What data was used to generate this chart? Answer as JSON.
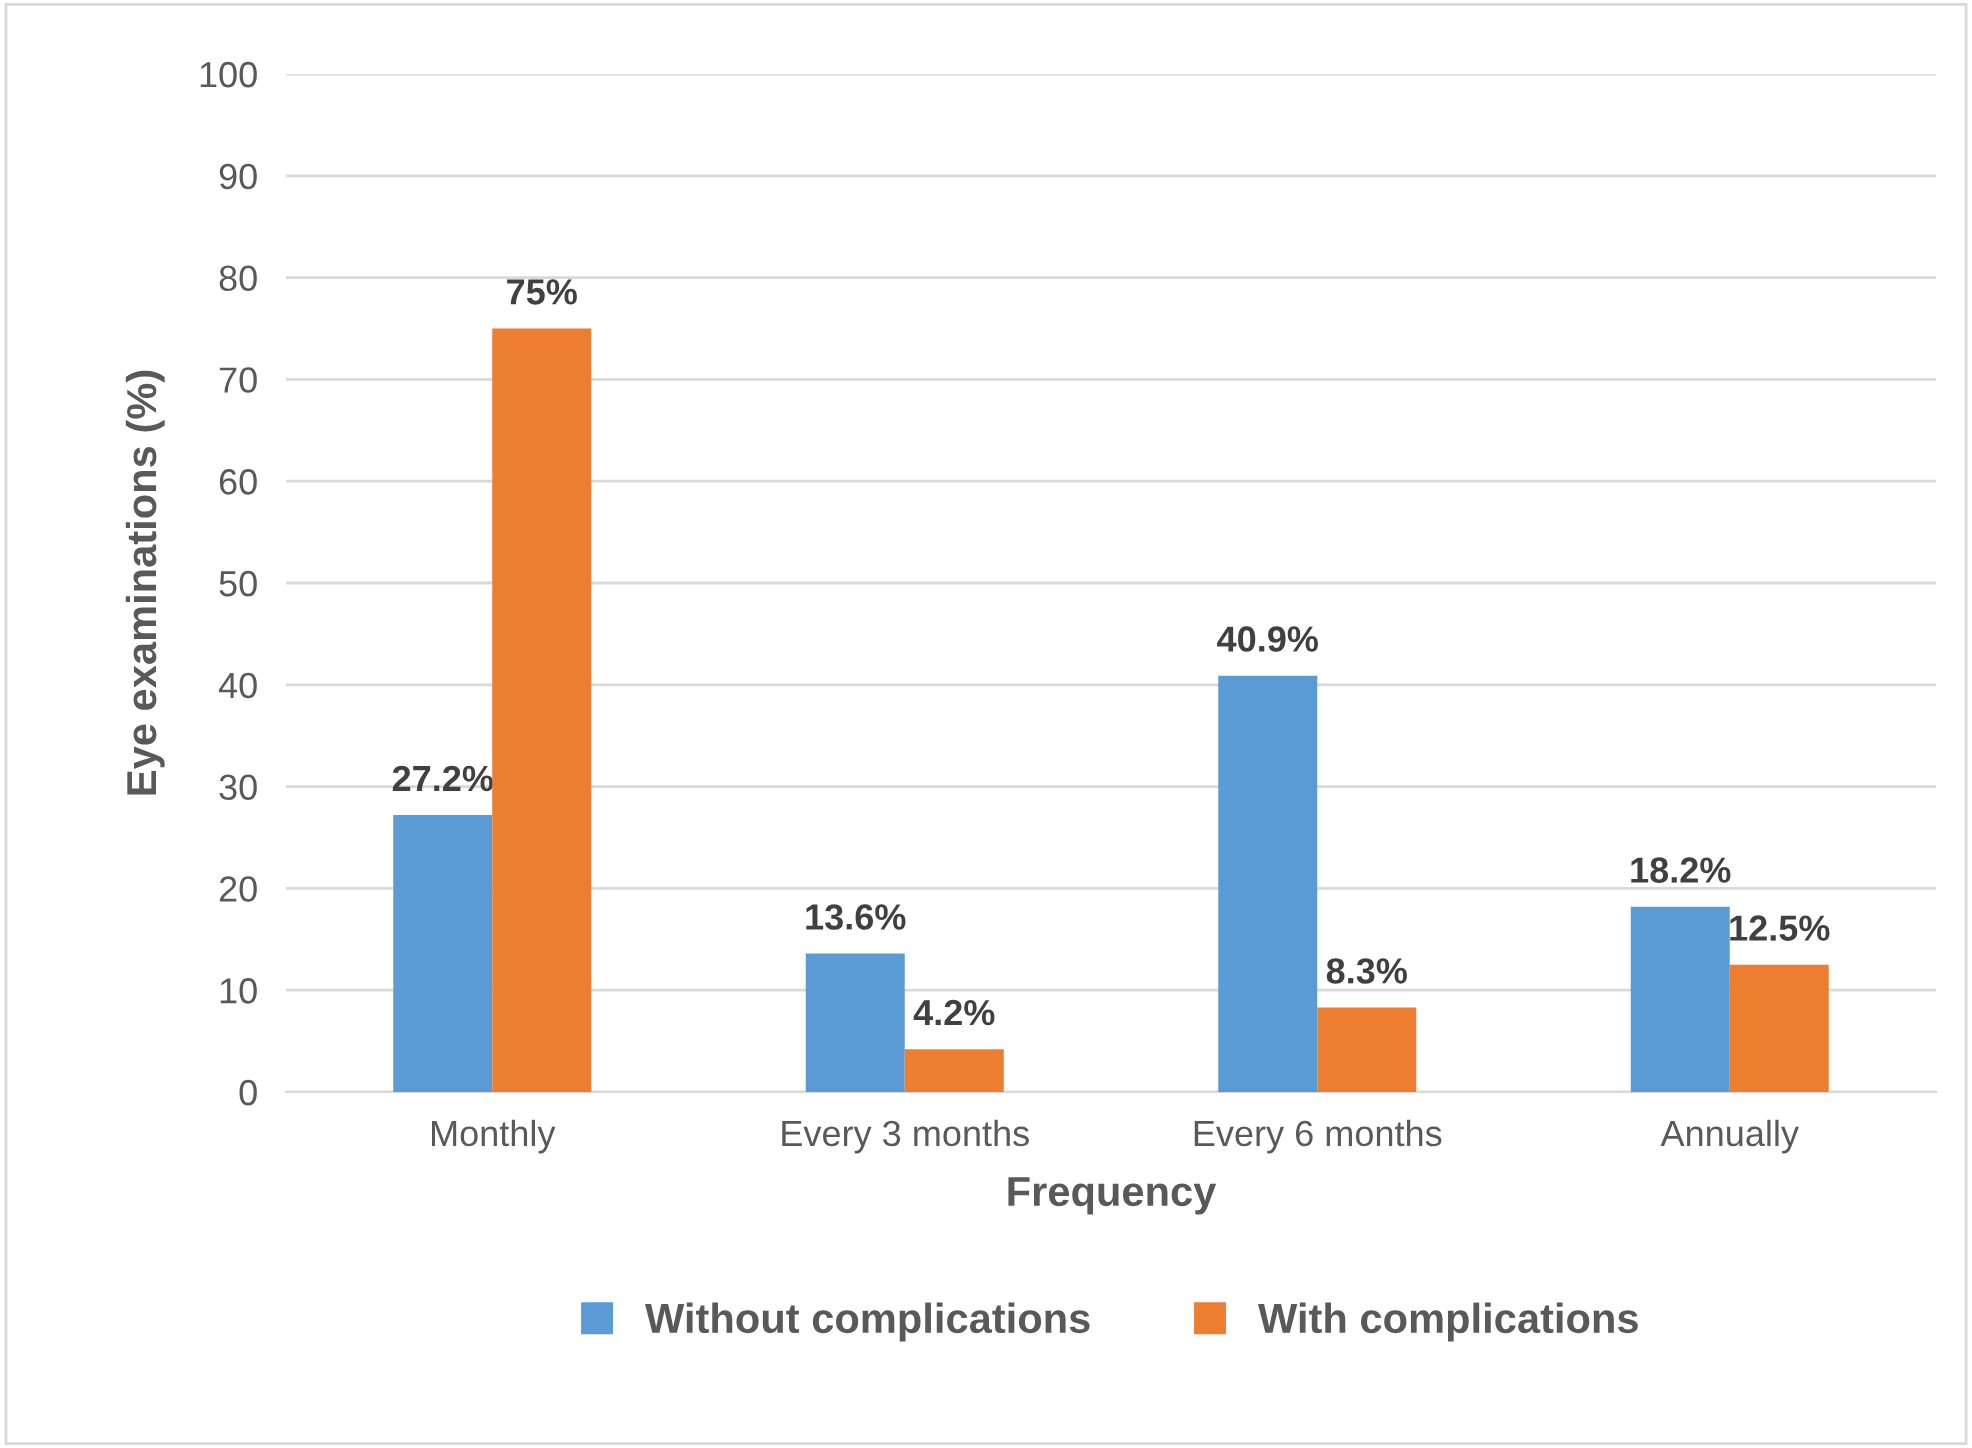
{
  "chart_data": {
    "type": "bar",
    "xlabel": "Frequency",
    "ylabel": "Eye examinations (%)",
    "categories": [
      "Monthly",
      "Every 3 months",
      "Every 6 months",
      "Annually"
    ],
    "series": [
      {
        "name": "Without complications",
        "color": "#5b9bd5",
        "values": [
          27.2,
          13.6,
          40.9,
          18.2
        ],
        "value_labels": [
          "27.2%",
          "13.6%",
          "40.9%",
          "18.2%"
        ]
      },
      {
        "name": "With complications",
        "color": "#ed7d31",
        "values": [
          75,
          4.2,
          8.3,
          12.5
        ],
        "value_labels": [
          "75%",
          "4.2%",
          "8.3%",
          "12.5%"
        ]
      }
    ],
    "ylim": [
      0,
      100
    ],
    "yticks": [
      0,
      10,
      20,
      30,
      40,
      50,
      60,
      70,
      80,
      90,
      100
    ],
    "grid": "y",
    "legend": "bottom"
  }
}
